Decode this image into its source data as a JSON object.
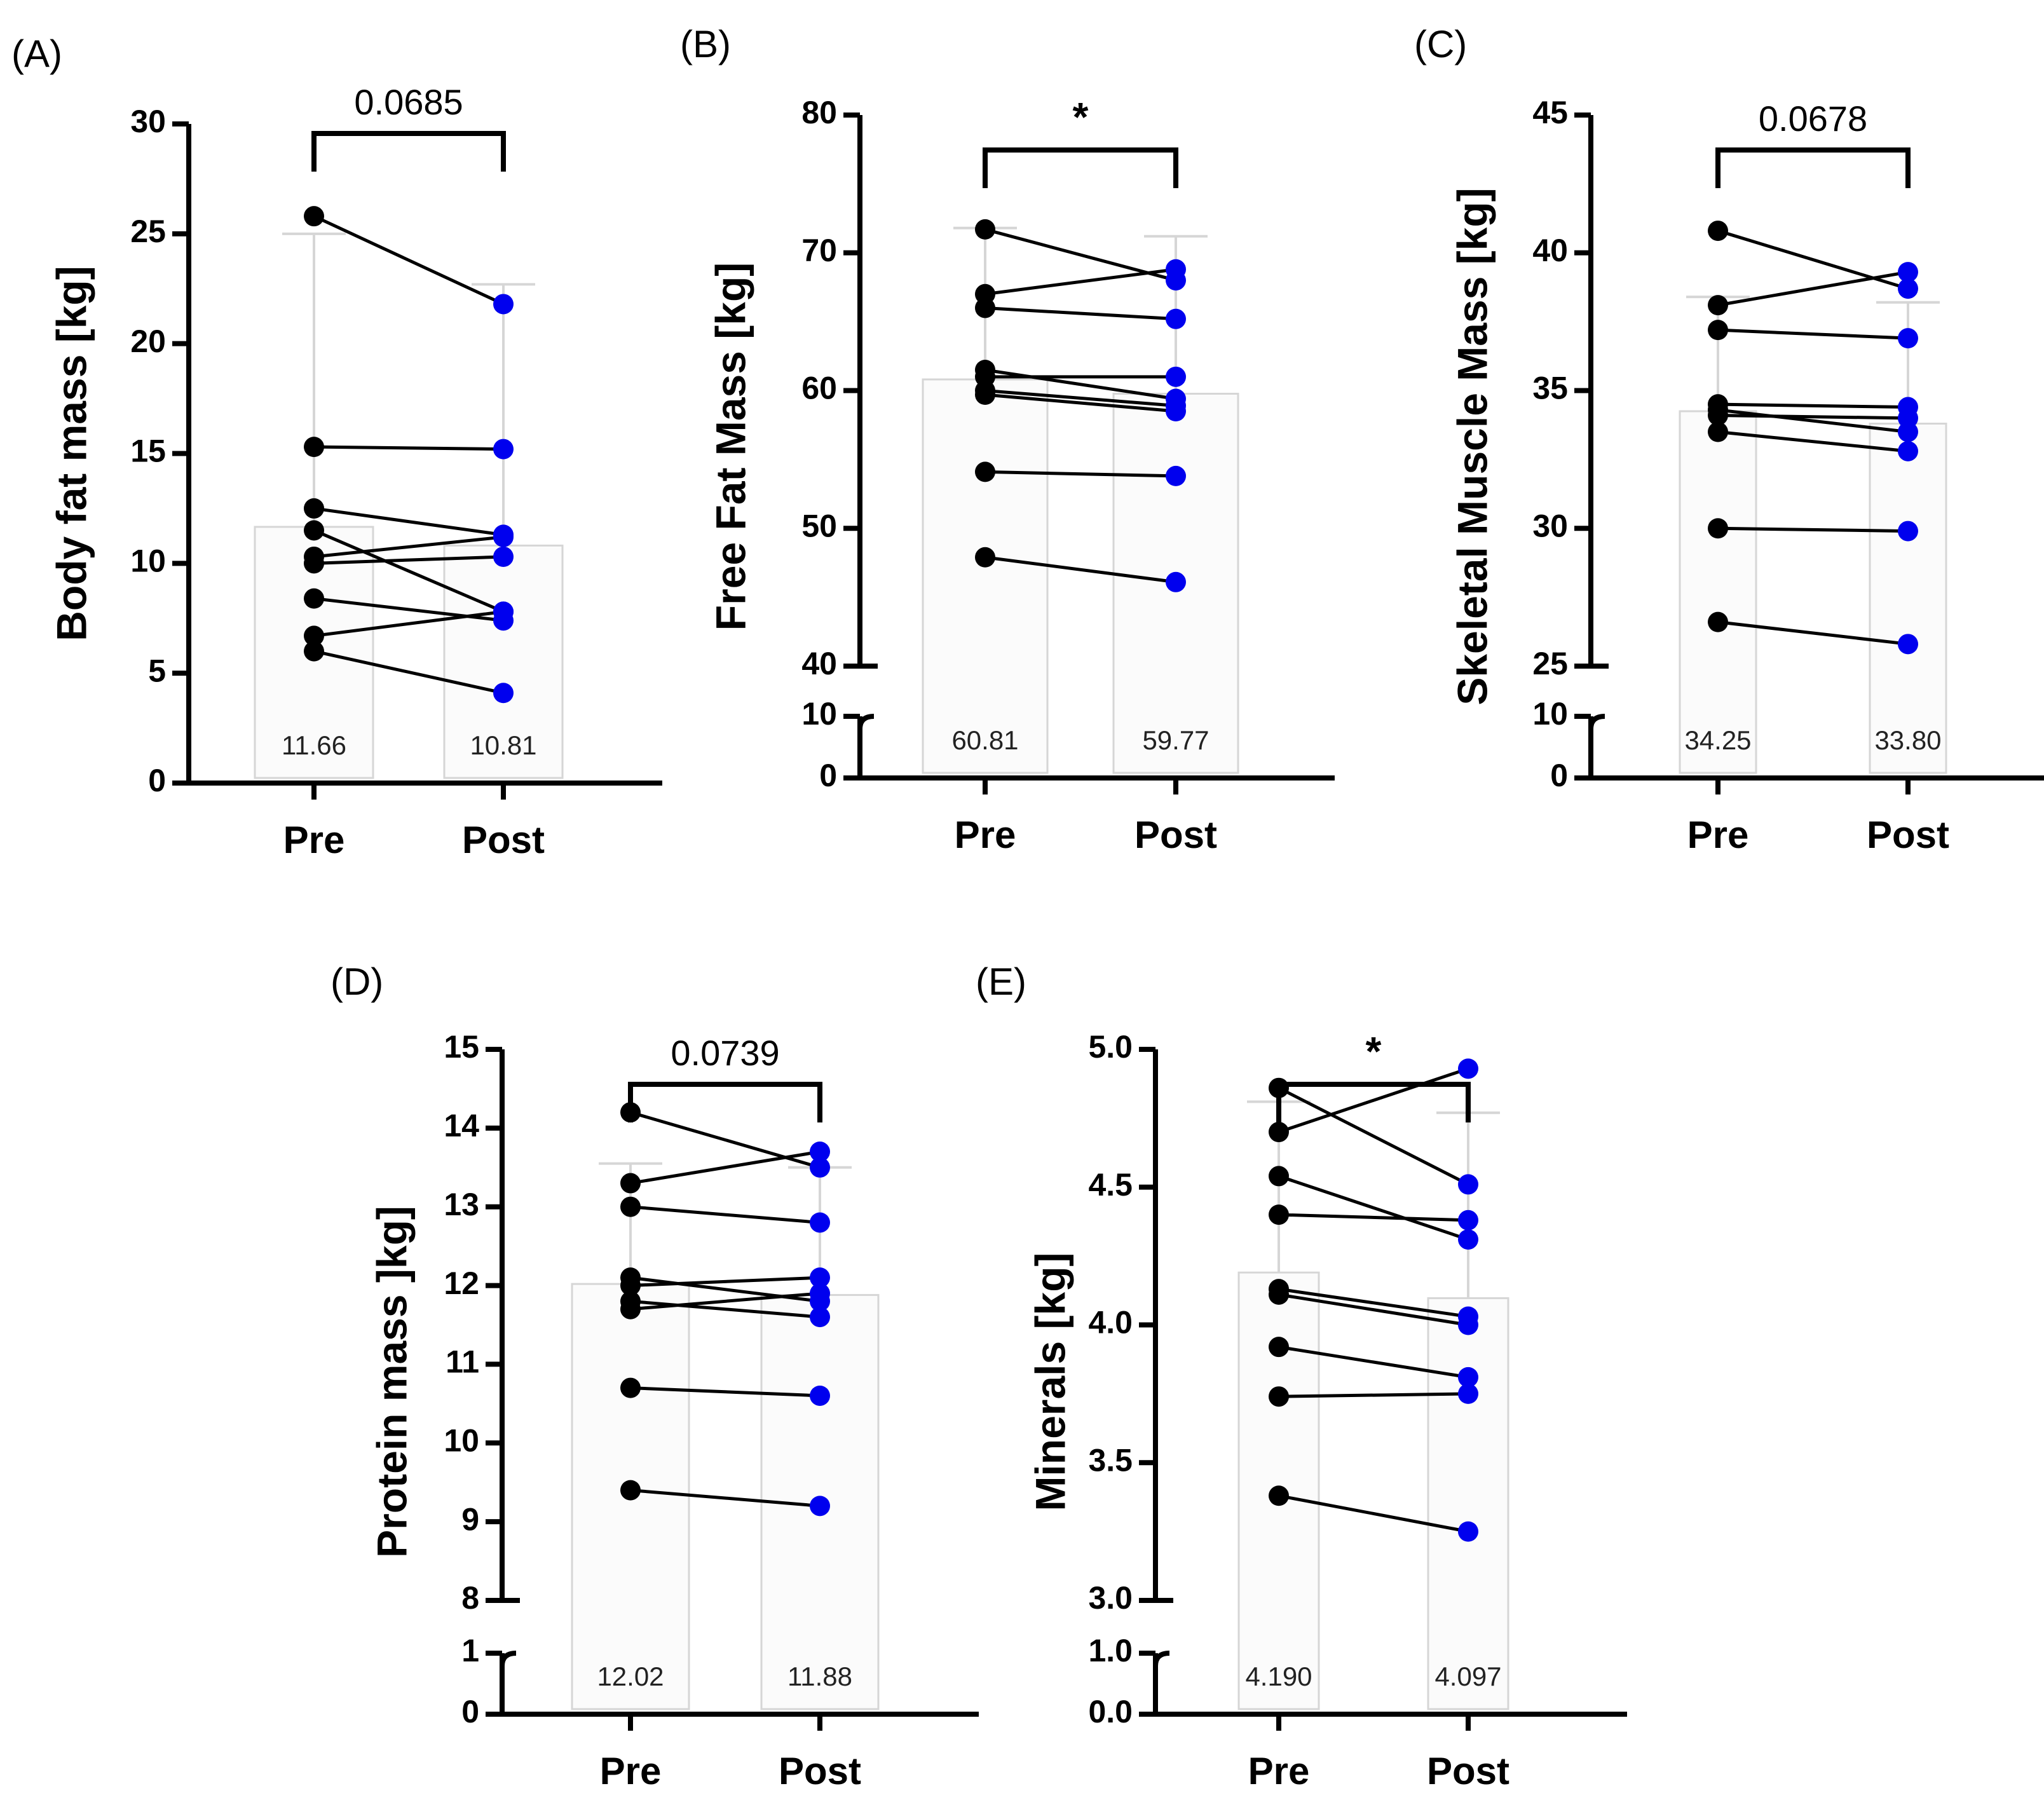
{
  "colors": {
    "pre": "#000000",
    "post": "#0000ee",
    "bar_fill": "#fbfbfb",
    "bar_stroke": "#d6d6d6",
    "axis": "#000000"
  },
  "chart_data": [
    {
      "id": "A",
      "type": "bar",
      "panel_label": "(A)",
      "ylabel": "Body fat mass [kg]",
      "categories": [
        "Pre",
        "Post"
      ],
      "broken_axis": false,
      "ylim": [
        0,
        30
      ],
      "yticks": [
        0,
        5,
        10,
        15,
        20,
        25,
        30
      ],
      "ytick_labels": [
        "0",
        "5",
        "10",
        "15",
        "20",
        "25",
        "30"
      ],
      "means": [
        11.66,
        10.81
      ],
      "mean_labels": [
        "11.66",
        "10.81"
      ],
      "errors": [
        25.0,
        22.7
      ],
      "significance": "0.0685",
      "significance_is_star": false,
      "pairs": [
        [
          25.8,
          21.8
        ],
        [
          15.3,
          15.2
        ],
        [
          12.5,
          11.3
        ],
        [
          11.5,
          7.8
        ],
        [
          10.3,
          11.2
        ],
        [
          10.0,
          10.3
        ],
        [
          8.4,
          7.4
        ],
        [
          6.7,
          7.8
        ],
        [
          6.0,
          4.1
        ]
      ]
    },
    {
      "id": "B",
      "type": "bar",
      "panel_label": "(B)",
      "ylabel": "Free Fat Mass [kg]",
      "categories": [
        "Pre",
        "Post"
      ],
      "broken_axis": true,
      "lower_range": [
        0,
        10
      ],
      "upper_range": [
        40,
        80
      ],
      "yticks": [
        0,
        10,
        40,
        50,
        60,
        70,
        80
      ],
      "ytick_labels": [
        "0",
        "10",
        "40",
        "50",
        "60",
        "70",
        "80"
      ],
      "means": [
        60.81,
        59.77
      ],
      "mean_labels": [
        "60.81",
        "59.77"
      ],
      "errors": [
        71.8,
        71.2
      ],
      "significance": "*",
      "significance_is_star": true,
      "pairs": [
        [
          71.7,
          68.0
        ],
        [
          67.0,
          68.8
        ],
        [
          66.0,
          65.2
        ],
        [
          61.5,
          59.4
        ],
        [
          61.0,
          61.0
        ],
        [
          60.0,
          58.9
        ],
        [
          59.7,
          58.5
        ],
        [
          54.1,
          53.8
        ],
        [
          47.9,
          46.1
        ]
      ]
    },
    {
      "id": "C",
      "type": "bar",
      "panel_label": "(C)",
      "ylabel": "Skeletal Muscle Mass [kg]",
      "categories": [
        "Pre",
        "Post"
      ],
      "broken_axis": true,
      "lower_range": [
        0,
        10
      ],
      "upper_range": [
        25,
        45
      ],
      "yticks": [
        0,
        10,
        25,
        30,
        35,
        40,
        45
      ],
      "ytick_labels": [
        "0",
        "10",
        "25",
        "30",
        "35",
        "40",
        "45"
      ],
      "means": [
        34.25,
        33.8
      ],
      "mean_labels": [
        "34.25",
        "33.80"
      ],
      "errors": [
        38.4,
        38.2
      ],
      "significance": "0.0678",
      "significance_is_star": false,
      "pairs": [
        [
          40.8,
          38.7
        ],
        [
          38.1,
          39.3
        ],
        [
          37.2,
          36.9
        ],
        [
          34.5,
          34.4
        ],
        [
          34.3,
          33.5
        ],
        [
          34.1,
          34.0
        ],
        [
          33.5,
          32.8
        ],
        [
          30.0,
          29.9
        ],
        [
          26.6,
          25.8
        ]
      ]
    },
    {
      "id": "D",
      "type": "bar",
      "panel_label": "(D)",
      "ylabel": "Protein mass ]kg]",
      "categories": [
        "Pre",
        "Post"
      ],
      "broken_axis": true,
      "lower_range": [
        0,
        1
      ],
      "upper_range": [
        8,
        15
      ],
      "yticks": [
        0,
        1,
        8,
        9,
        10,
        11,
        12,
        13,
        14,
        15
      ],
      "ytick_labels": [
        "0",
        "1",
        "8",
        "9",
        "10",
        "11",
        "12",
        "13",
        "14",
        "15"
      ],
      "means": [
        12.02,
        11.88
      ],
      "mean_labels": [
        "12.02",
        "11.88"
      ],
      "errors": [
        13.55,
        13.5
      ],
      "significance": "0.0739",
      "significance_is_star": false,
      "pairs": [
        [
          14.2,
          13.5
        ],
        [
          13.3,
          13.7
        ],
        [
          13.0,
          12.8
        ],
        [
          12.1,
          11.8
        ],
        [
          12.0,
          12.1
        ],
        [
          11.8,
          11.6
        ],
        [
          11.7,
          11.9
        ],
        [
          10.7,
          10.6
        ],
        [
          9.4,
          9.2
        ]
      ]
    },
    {
      "id": "E",
      "type": "bar",
      "panel_label": "(E)",
      "ylabel": "Minerals [kg]",
      "categories": [
        "Pre",
        "Post"
      ],
      "broken_axis": true,
      "lower_range": [
        0,
        1
      ],
      "upper_range": [
        3,
        5
      ],
      "yticks": [
        0,
        1,
        3,
        3.5,
        4,
        4.5,
        5
      ],
      "ytick_labels": [
        "0.0",
        "1.0",
        "3.0",
        "3.5",
        "4.0",
        "4.5",
        "5.0"
      ],
      "means": [
        4.19,
        4.097
      ],
      "mean_labels": [
        "4.190",
        "4.097"
      ],
      "errors": [
        4.81,
        4.77
      ],
      "significance": "*",
      "significance_is_star": true,
      "pairs": [
        [
          4.86,
          4.51
        ],
        [
          4.7,
          4.93
        ],
        [
          4.54,
          4.31
        ],
        [
          4.4,
          4.38
        ],
        [
          4.13,
          4.03
        ],
        [
          4.11,
          4.0
        ],
        [
          3.92,
          3.81
        ],
        [
          3.74,
          3.75
        ],
        [
          3.38,
          3.25
        ]
      ]
    }
  ]
}
